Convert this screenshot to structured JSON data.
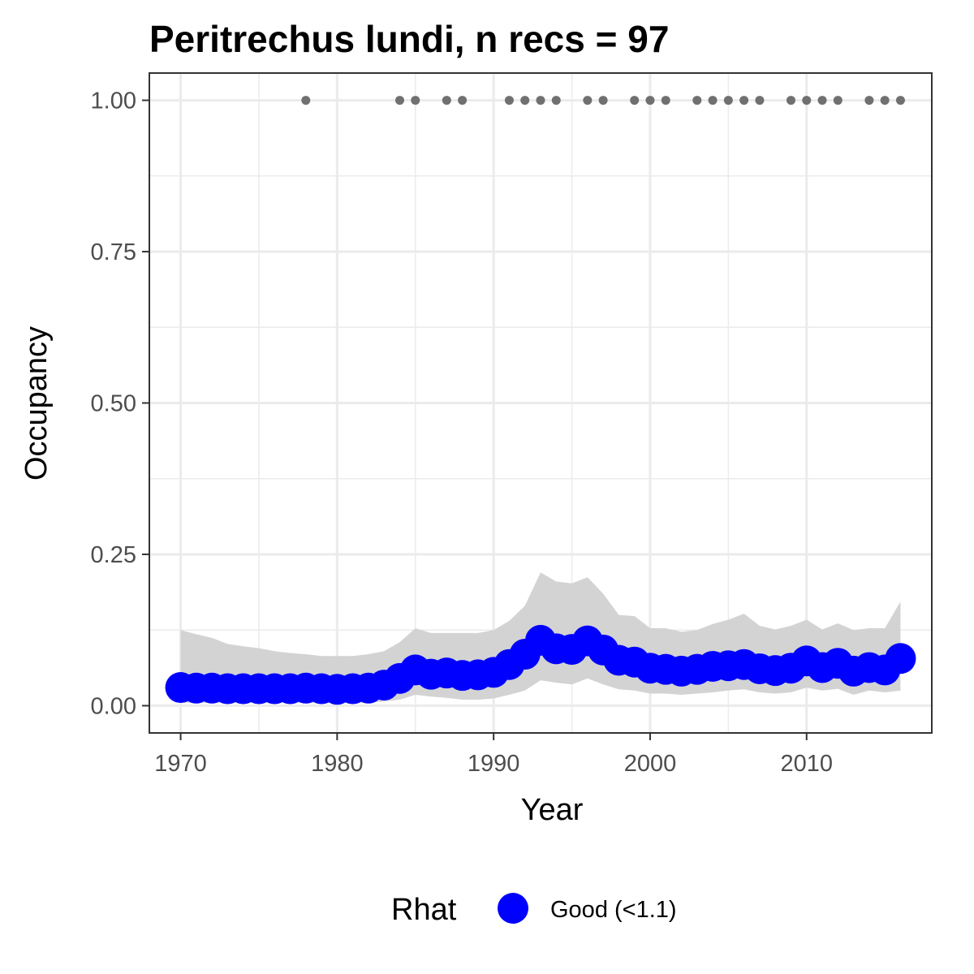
{
  "chart_data": {
    "type": "line",
    "title": "Peritrechus lundi, n recs = 97",
    "xlabel": "Year",
    "ylabel": "Occupancy",
    "xlim": [
      1968,
      2018
    ],
    "ylim": [
      -0.045,
      1.045
    ],
    "x_ticks": [
      1970,
      1980,
      1990,
      2000,
      2010
    ],
    "x_tick_labels": [
      "1970",
      "1980",
      "1990",
      "2000",
      "2010"
    ],
    "y_ticks": [
      0,
      0.25,
      0.5,
      0.75,
      1.0
    ],
    "y_tick_labels": [
      "0.00",
      "0.25",
      "0.50",
      "0.75",
      "1.00"
    ],
    "grid": true,
    "legend_position": "bottom",
    "legend": {
      "title": "Rhat",
      "entries": [
        {
          "label": "Good (<1.1)",
          "color": "#0000ff"
        }
      ]
    },
    "colors": {
      "series": "#0000ff",
      "ribbon": "#d3d3d3",
      "records": "#707070",
      "grid": "#ebebeb",
      "panel_border": "#333333"
    },
    "series": [
      {
        "name": "Good (<1.1)",
        "x": [
          1970,
          1971,
          1972,
          1973,
          1974,
          1975,
          1976,
          1977,
          1978,
          1979,
          1980,
          1981,
          1982,
          1983,
          1984,
          1985,
          1986,
          1987,
          1988,
          1989,
          1990,
          1991,
          1992,
          1993,
          1994,
          1995,
          1996,
          1997,
          1998,
          1999,
          2000,
          2001,
          2002,
          2003,
          2004,
          2005,
          2006,
          2007,
          2008,
          2009,
          2010,
          2011,
          2012,
          2013,
          2014,
          2015,
          2016
        ],
        "y": [
          0.03,
          0.029,
          0.029,
          0.028,
          0.028,
          0.028,
          0.028,
          0.028,
          0.029,
          0.028,
          0.027,
          0.028,
          0.029,
          0.034,
          0.045,
          0.059,
          0.052,
          0.054,
          0.05,
          0.051,
          0.055,
          0.068,
          0.085,
          0.108,
          0.094,
          0.093,
          0.107,
          0.092,
          0.075,
          0.072,
          0.062,
          0.06,
          0.057,
          0.06,
          0.065,
          0.066,
          0.068,
          0.061,
          0.058,
          0.062,
          0.074,
          0.063,
          0.07,
          0.057,
          0.063,
          0.059,
          0.078
        ],
        "lower": [
          0.005,
          0.005,
          0.005,
          0.005,
          0.005,
          0.005,
          0.005,
          0.005,
          0.005,
          0.005,
          0.005,
          0.005,
          0.005,
          0.007,
          0.01,
          0.018,
          0.015,
          0.013,
          0.01,
          0.01,
          0.012,
          0.018,
          0.025,
          0.042,
          0.038,
          0.035,
          0.045,
          0.035,
          0.027,
          0.025,
          0.02,
          0.02,
          0.018,
          0.02,
          0.022,
          0.025,
          0.027,
          0.022,
          0.02,
          0.022,
          0.03,
          0.025,
          0.028,
          0.018,
          0.025,
          0.022,
          0.025
        ],
        "upper": [
          0.125,
          0.118,
          0.112,
          0.102,
          0.098,
          0.095,
          0.09,
          0.087,
          0.085,
          0.082,
          0.082,
          0.082,
          0.085,
          0.09,
          0.105,
          0.128,
          0.12,
          0.12,
          0.12,
          0.12,
          0.125,
          0.14,
          0.165,
          0.22,
          0.205,
          0.202,
          0.212,
          0.185,
          0.15,
          0.148,
          0.128,
          0.128,
          0.122,
          0.125,
          0.135,
          0.142,
          0.152,
          0.132,
          0.126,
          0.132,
          0.142,
          0.126,
          0.136,
          0.125,
          0.128,
          0.128,
          0.172
        ]
      }
    ],
    "records": {
      "y": 1.0,
      "x": [
        1978,
        1984,
        1985,
        1987,
        1988,
        1991,
        1992,
        1993,
        1994,
        1996,
        1997,
        1999,
        2000,
        2001,
        2003,
        2004,
        2005,
        2006,
        2007,
        2009,
        2010,
        2011,
        2012,
        2014,
        2015,
        2016
      ]
    }
  }
}
